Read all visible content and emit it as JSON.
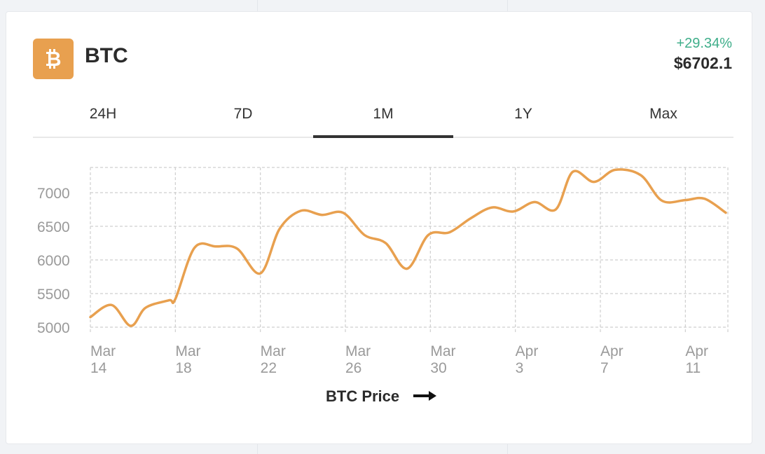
{
  "coin": {
    "symbol": "BTC",
    "logo_icon": "bitcoin-icon",
    "logo_color": "#e8a04f",
    "change": "+29.34%",
    "change_color": "#3fae8a",
    "price": "$6702.1"
  },
  "tabs": [
    {
      "label": "24H",
      "active": false
    },
    {
      "label": "7D",
      "active": false
    },
    {
      "label": "1M",
      "active": true
    },
    {
      "label": "1Y",
      "active": false
    },
    {
      "label": "Max",
      "active": false
    }
  ],
  "chart_data": {
    "type": "line",
    "title": "BTC Price",
    "line_color": "#e8a04f",
    "grid": true,
    "ylim": [
      4950,
      7500
    ],
    "yticks": [
      5000,
      5500,
      6000,
      6500,
      7000
    ],
    "xticks": [
      {
        "day": 0,
        "line1": "Mar",
        "line2": "14"
      },
      {
        "day": 4,
        "line1": "Mar",
        "line2": "18"
      },
      {
        "day": 8,
        "line1": "Mar",
        "line2": "22"
      },
      {
        "day": 12,
        "line1": "Mar",
        "line2": "26"
      },
      {
        "day": 16,
        "line1": "Mar",
        "line2": "30"
      },
      {
        "day": 20,
        "line1": "Apr",
        "line2": "3"
      },
      {
        "day": 24,
        "line1": "Apr",
        "line2": "7"
      },
      {
        "day": 28,
        "line1": "Apr",
        "line2": "11"
      }
    ],
    "x": [
      0,
      1,
      1.9,
      2.6,
      3.7,
      4,
      4.9,
      5.9,
      6.9,
      8,
      8.9,
      9.9,
      10.9,
      11.9,
      12.9,
      13.9,
      14.9,
      15.9,
      16.9,
      17.9,
      18.9,
      19.9,
      20.9,
      21.9,
      22.7,
      23.7,
      24.7,
      25.9,
      26.9,
      28,
      28.9,
      29.9
    ],
    "y": [
      5150,
      5330,
      5020,
      5290,
      5400,
      5420,
      6180,
      6200,
      6170,
      5800,
      6460,
      6730,
      6670,
      6700,
      6370,
      6250,
      5870,
      6370,
      6410,
      6620,
      6780,
      6720,
      6860,
      6750,
      7310,
      7160,
      7340,
      7260,
      6880,
      6890,
      6910,
      6702
    ]
  }
}
